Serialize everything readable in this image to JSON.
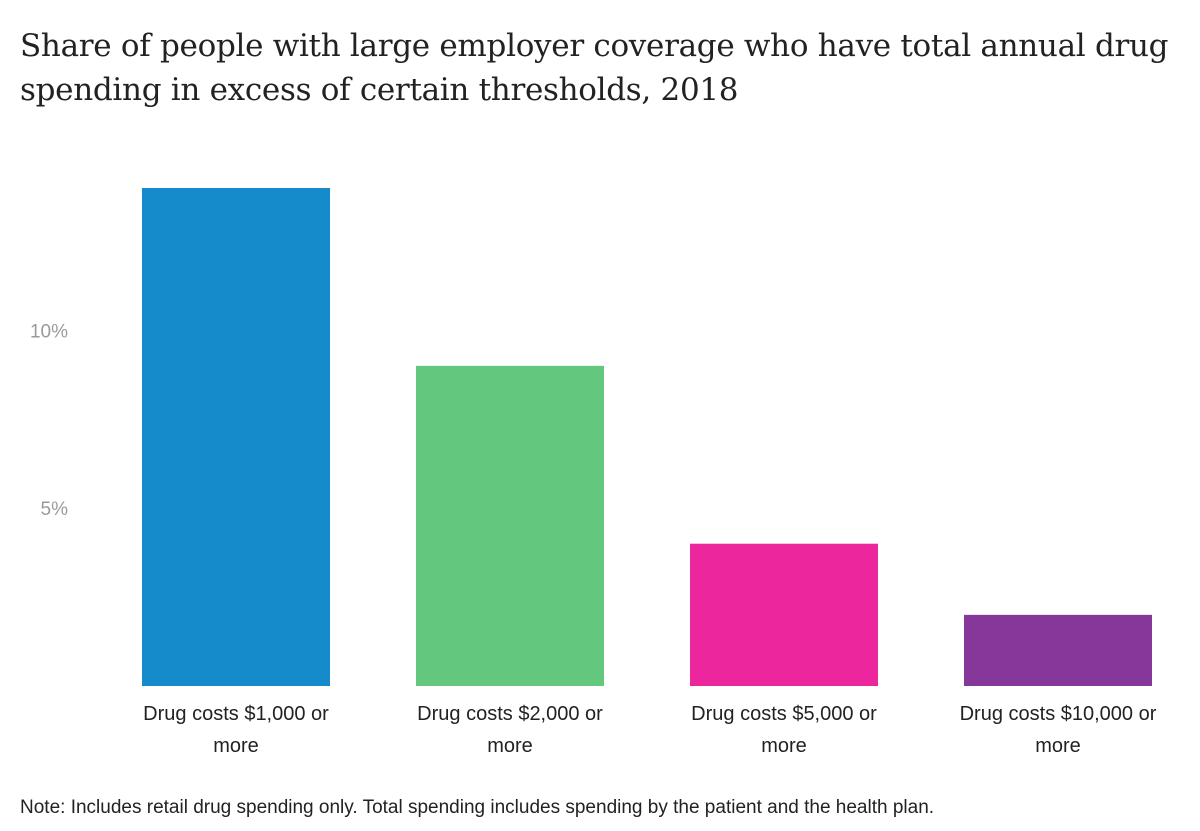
{
  "title": "Share of people with large employer coverage who have total annual drug spending in excess of certain thresholds, 2018",
  "note": "Note: Includes retail drug spending only. Total spending includes spending by the patient and the health plan.",
  "chart_data": {
    "type": "bar",
    "categories": [
      [
        "Drug costs $1,000 or",
        "more"
      ],
      [
        "Drug costs $2,000 or",
        "more"
      ],
      [
        "Drug costs $5,000 or",
        "more"
      ],
      [
        "Drug costs $10,000 or",
        "more"
      ]
    ],
    "values": [
      14,
      9,
      4,
      2
    ],
    "colors": [
      "#168bcb",
      "#63c77d",
      "#ec269d",
      "#85379a"
    ],
    "yticks": [
      {
        "value": 5,
        "label": "5%"
      },
      {
        "value": 10,
        "label": "10%"
      }
    ],
    "ylim": [
      0,
      14
    ],
    "grid": false,
    "legend": false
  }
}
